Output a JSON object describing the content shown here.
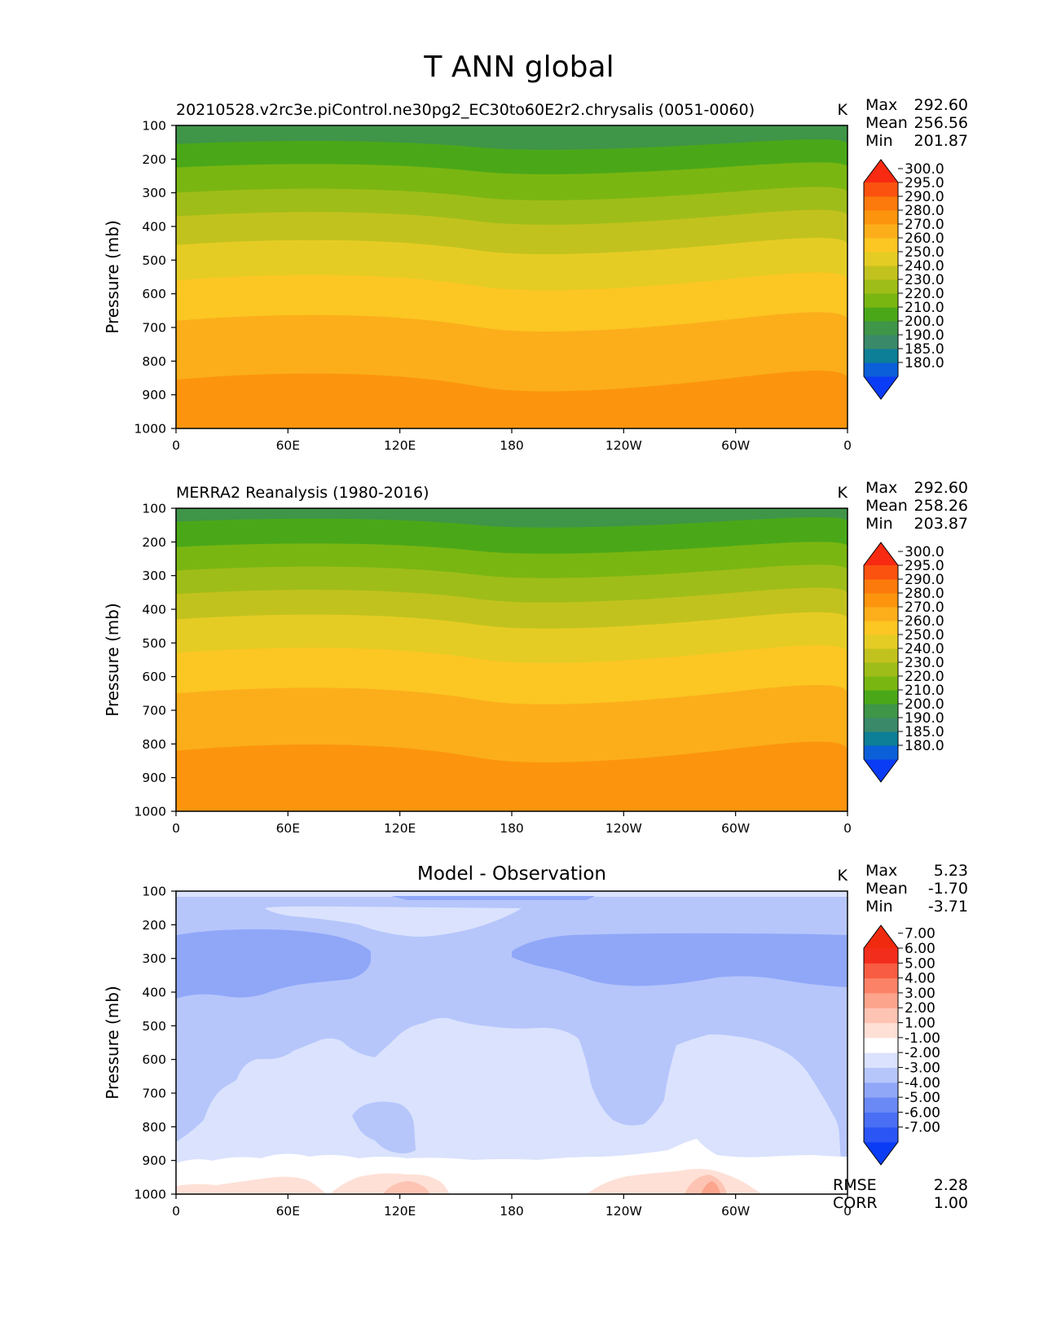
{
  "figure_title": "T ANN global",
  "chart_data": [
    {
      "type": "contour",
      "panel": "test",
      "subtitle": "20210528.v2rc3e.piControl.ne30pg2_EC30to60E2r2.chrysalis (0051-0060)",
      "units": "K",
      "ylabel": "Pressure (mb)",
      "y_ticks": [
        "100",
        "200",
        "300",
        "400",
        "500",
        "600",
        "700",
        "800",
        "900",
        "1000"
      ],
      "x_ticks": [
        "0",
        "60E",
        "120E",
        "180",
        "120W",
        "60W",
        "0"
      ],
      "stats": {
        "max_label": "Max",
        "mean_label": "Mean",
        "min_label": "Min",
        "max": "292.60",
        "mean": "256.56",
        "min": "201.87"
      },
      "colorbar": {
        "levels": [
          "180.0",
          "185.0",
          "190.0",
          "200.0",
          "210.0",
          "220.0",
          "230.0",
          "240.0",
          "250.0",
          "260.0",
          "270.0",
          "280.0",
          "290.0",
          "295.0",
          "300.0"
        ],
        "colors": [
          "#0a3cf5",
          "#0b5fd8",
          "#0d7f96",
          "#3a8a6a",
          "#3f9548",
          "#4aa818",
          "#7ab612",
          "#9fbd18",
          "#c2c21e",
          "#e5cc24",
          "#fcc623",
          "#fbae1a",
          "#fc950d",
          "#fc7a0b",
          "#fb520f",
          "#f82a12"
        ]
      },
      "bands": [
        {
          "lower": 100,
          "color": "#3f9548"
        },
        {
          "lower": 155,
          "color": "#4aa818"
        },
        {
          "lower": 225,
          "color": "#7ab612"
        },
        {
          "lower": 300,
          "color": "#9fbd18"
        },
        {
          "lower": 370,
          "color": "#c2c21e"
        },
        {
          "lower": 455,
          "color": "#e5cc24"
        },
        {
          "lower": 560,
          "color": "#fcc623"
        },
        {
          "lower": 680,
          "color": "#fbae1a"
        },
        {
          "lower": 855,
          "color": "#fc950d"
        }
      ]
    },
    {
      "type": "contour",
      "panel": "reference",
      "subtitle": "MERRA2 Reanalysis (1980-2016)",
      "units": "K",
      "ylabel": "Pressure (mb)",
      "y_ticks": [
        "100",
        "200",
        "300",
        "400",
        "500",
        "600",
        "700",
        "800",
        "900",
        "1000"
      ],
      "x_ticks": [
        "0",
        "60E",
        "120E",
        "180",
        "120W",
        "60W",
        "0"
      ],
      "stats": {
        "max_label": "Max",
        "mean_label": "Mean",
        "min_label": "Min",
        "max": "292.60",
        "mean": "258.26",
        "min": "203.87"
      },
      "colorbar": {
        "levels": [
          "180.0",
          "185.0",
          "190.0",
          "200.0",
          "210.0",
          "220.0",
          "230.0",
          "240.0",
          "250.0",
          "260.0",
          "270.0",
          "280.0",
          "290.0",
          "295.0",
          "300.0"
        ],
        "colors": [
          "#0a3cf5",
          "#0b5fd8",
          "#0d7f96",
          "#3a8a6a",
          "#3f9548",
          "#4aa818",
          "#7ab612",
          "#9fbd18",
          "#c2c21e",
          "#e5cc24",
          "#fcc623",
          "#fbae1a",
          "#fc950d",
          "#fc7a0b",
          "#fb520f",
          "#f82a12"
        ]
      },
      "bands": [
        {
          "lower": 100,
          "color": "#3f9548"
        },
        {
          "lower": 140,
          "color": "#4aa818"
        },
        {
          "lower": 215,
          "color": "#7ab612"
        },
        {
          "lower": 285,
          "color": "#9fbd18"
        },
        {
          "lower": 355,
          "color": "#c2c21e"
        },
        {
          "lower": 430,
          "color": "#e5cc24"
        },
        {
          "lower": 530,
          "color": "#fcc623"
        },
        {
          "lower": 650,
          "color": "#fbae1a"
        },
        {
          "lower": 820,
          "color": "#fc950d"
        }
      ]
    },
    {
      "type": "contour",
      "panel": "difference",
      "title": "Model - Observation",
      "units": "K",
      "ylabel": "Pressure (mb)",
      "y_ticks": [
        "100",
        "200",
        "300",
        "400",
        "500",
        "600",
        "700",
        "800",
        "900",
        "1000"
      ],
      "x_ticks": [
        "0",
        "60E",
        "120E",
        "180",
        "120W",
        "60W",
        "0"
      ],
      "stats": {
        "max_label": "Max",
        "mean_label": "Mean",
        "min_label": "Min",
        "max": "5.23",
        "mean": "-1.70",
        "min": "-3.71"
      },
      "metrics": {
        "rmse_label": "RMSE",
        "rmse": "2.28",
        "corr_label": "CORR",
        "corr": "1.00"
      },
      "colorbar": {
        "levels": [
          "-7.00",
          "-6.00",
          "-5.00",
          "-4.00",
          "-3.00",
          "-2.00",
          "-1.00",
          "1.00",
          "2.00",
          "3.00",
          "4.00",
          "5.00",
          "6.00",
          "7.00"
        ],
        "colors": [
          "#0a3cf5",
          "#2b55f5",
          "#4a6ff5",
          "#6a89f5",
          "#90a7f8",
          "#b6c6fb",
          "#dae2fd",
          "#ffffff",
          "#fee0d6",
          "#fdc3b3",
          "#fca48c",
          "#fb8266",
          "#f85c42",
          "#f32d1c",
          "#f02a0e"
        ]
      }
    }
  ]
}
